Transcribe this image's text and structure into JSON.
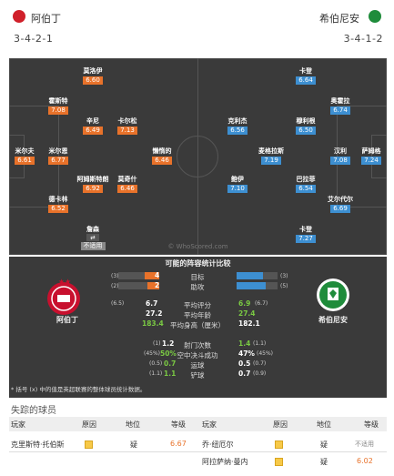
{
  "home": {
    "name": "阿伯丁",
    "formation": "3-4-2-1"
  },
  "away": {
    "name": "希伯尼安",
    "formation": "3-4-1-2"
  },
  "home_players": [
    {
      "name": "莫洛伊",
      "rating": "6.60"
    },
    {
      "name": "霍斯特",
      "rating": "7.08"
    },
    {
      "name": "辛尼",
      "rating": "6.49"
    },
    {
      "name": "卡尔松",
      "rating": "7.13"
    },
    {
      "name": "米尔夫",
      "rating": "6.61"
    },
    {
      "name": "米尔恩",
      "rating": "6.77"
    },
    {
      "name": "懒惰的",
      "rating": "6.46"
    },
    {
      "name": "阿姆斯特朗",
      "rating": "6.92"
    },
    {
      "name": "莫奇什",
      "rating": "6.46"
    },
    {
      "name": "德卡林",
      "rating": "6.52"
    },
    {
      "name": "詹森",
      "rating": "不适用"
    }
  ],
  "away_players": [
    {
      "name": "卡登",
      "rating": "6.64"
    },
    {
      "name": "奥霍拉",
      "rating": "6.74"
    },
    {
      "name": "克利杰",
      "rating": "6.56"
    },
    {
      "name": "穆利根",
      "rating": "6.50"
    },
    {
      "name": "麦格拉斯",
      "rating": "7.19"
    },
    {
      "name": "汉利",
      "rating": "7.08"
    },
    {
      "name": "萨姆格",
      "rating": "7.24"
    },
    {
      "name": "鲍伊",
      "rating": "7.10"
    },
    {
      "name": "巴拉菲",
      "rating": "6.54"
    },
    {
      "name": "艾尔代尔",
      "rating": "6.69"
    },
    {
      "name": "卡登",
      "rating": "7.27"
    }
  ],
  "watermark": "© WhoScored.com",
  "compare": {
    "title": "可能的阵容统计比较",
    "top_rows": [
      {
        "label": "目标",
        "home_rank": "(3)",
        "home": "4",
        "away": "7",
        "away_rank": "(3)",
        "home_frac": 0.364,
        "away_frac": 0.636
      },
      {
        "label": "助攻",
        "home_rank": "(2)",
        "home": "2",
        "away": "5",
        "away_rank": "(5)",
        "home_frac": 0.286,
        "away_frac": 0.714
      }
    ],
    "mid_rows": [
      {
        "label": "平均评分",
        "home_rank": "(6.5)",
        "home": "6.7",
        "away": "6.9",
        "away_rank": "(6.7)",
        "hl": "away"
      },
      {
        "label": "平均年龄",
        "home_rank": "",
        "home": "27.2",
        "away": "27.4",
        "away_rank": "",
        "hl": "away"
      },
      {
        "label": "平均身高（厘米）",
        "home_rank": "",
        "home": "183.4",
        "away": "182.1",
        "away_rank": "",
        "hl": "home"
      }
    ],
    "low_rows": [
      {
        "label": "射门次数",
        "home_rank": "(1)",
        "home": "1.2",
        "away": "1.4",
        "away_rank": "(1.1)",
        "hl": "away"
      },
      {
        "label": "空中决斗成功",
        "home_rank": "(45%)",
        "home": "50%",
        "away": "47%",
        "away_rank": "(45%)",
        "hl": "home"
      },
      {
        "label": "运球",
        "home_rank": "(0.5)",
        "home": "0.7",
        "away": "0.5",
        "away_rank": "(0.7)",
        "hl": "home"
      },
      {
        "label": "铲球",
        "home_rank": "(1.1)",
        "home": "1.1",
        "away": "0.7",
        "away_rank": "(0.9)",
        "hl": "home"
      }
    ],
    "note": "* 括号 (x) 中的值是英超联赛的整体球员统计数据。"
  },
  "missing": {
    "title": "失踪的球员",
    "headers": [
      "玩家",
      "原因",
      "地位",
      "等级",
      "玩家",
      "原因",
      "地位",
      "等级"
    ],
    "home_rows": [
      {
        "player": "克里斯特·托伯斯",
        "status": "疑",
        "rating": "6.67"
      }
    ],
    "away_rows": [
      {
        "player": "乔·纽厄尔",
        "status": "疑",
        "rating": "不适用"
      },
      {
        "player": "阿拉萨纳·曼内",
        "status": "疑",
        "rating": "6.02"
      }
    ]
  },
  "colors": {
    "home": "#e8722a",
    "away": "#3d8fd1",
    "pitch": "#3a3a3a",
    "positive": "#7ac943"
  }
}
